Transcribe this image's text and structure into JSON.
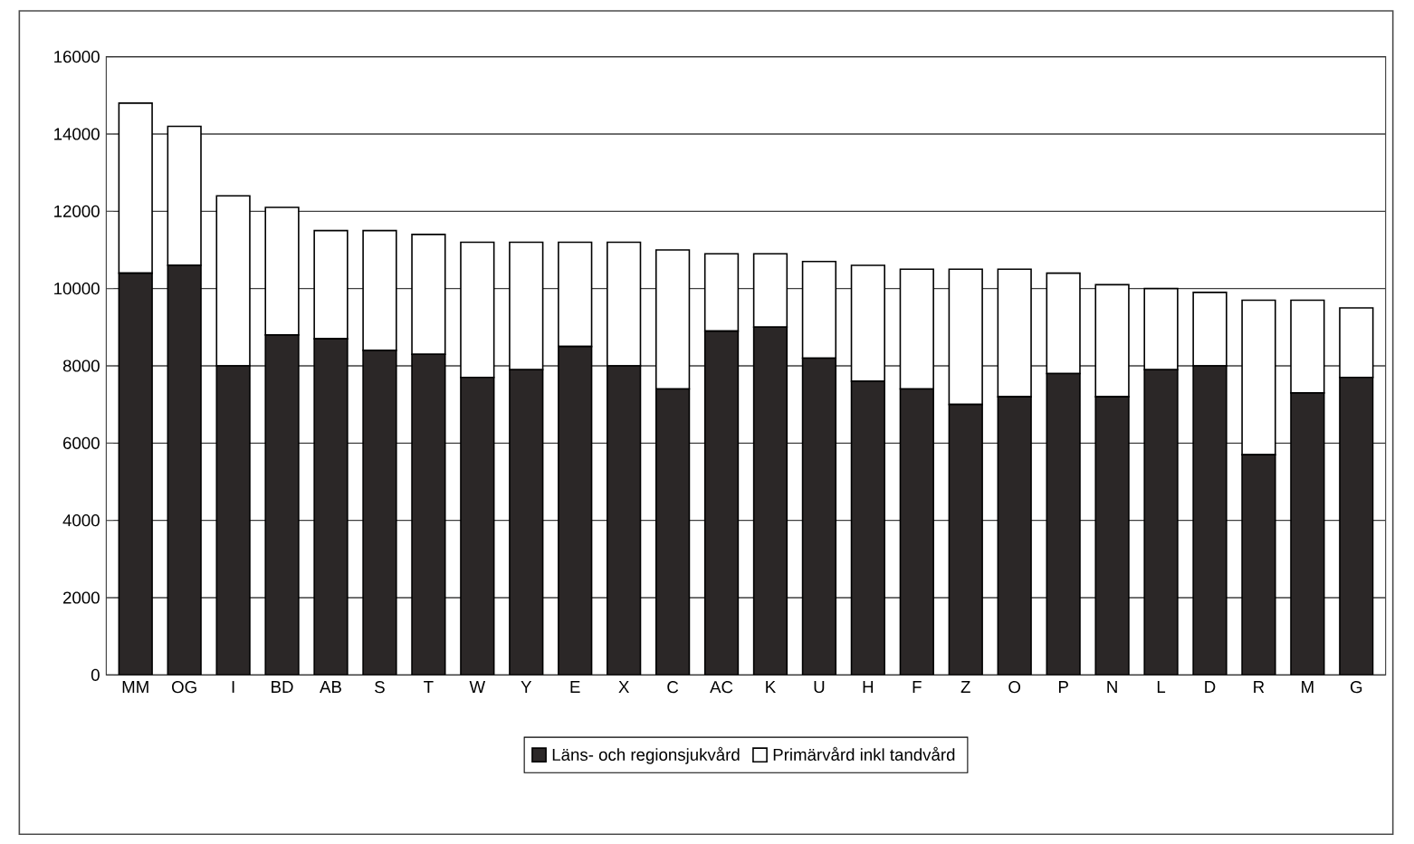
{
  "chart_data": {
    "type": "bar",
    "stacked": true,
    "categories": [
      "MM",
      "OG",
      "I",
      "BD",
      "AB",
      "S",
      "T",
      "W",
      "Y",
      "E",
      "X",
      "C",
      "AC",
      "K",
      "U",
      "H",
      "F",
      "Z",
      "O",
      "P",
      "N",
      "L",
      "D",
      "R",
      "M",
      "G"
    ],
    "series": [
      {
        "name": "Läns- och regionsjukvård",
        "color": "#2b2727",
        "values": [
          10400,
          10600,
          8000,
          8800,
          8700,
          8400,
          8300,
          7700,
          7900,
          8500,
          8000,
          7400,
          8900,
          9000,
          8200,
          7600,
          7400,
          7000,
          7200,
          7800,
          7200,
          7900,
          8000,
          5700,
          7300,
          7700
        ]
      },
      {
        "name": "Primärvård inkl tandvård",
        "color": "#ffffff",
        "values": [
          4400,
          3600,
          4400,
          3300,
          2800,
          3100,
          3100,
          3500,
          3300,
          2700,
          3200,
          3600,
          2000,
          1900,
          2500,
          3000,
          3100,
          3500,
          3300,
          2600,
          2900,
          2100,
          1900,
          4000,
          2400,
          1800
        ]
      }
    ],
    "ylim": [
      0,
      16000
    ],
    "yticks": [
      0,
      2000,
      4000,
      6000,
      8000,
      10000,
      12000,
      14000,
      16000
    ],
    "grid": "y",
    "legend": "bottom"
  }
}
